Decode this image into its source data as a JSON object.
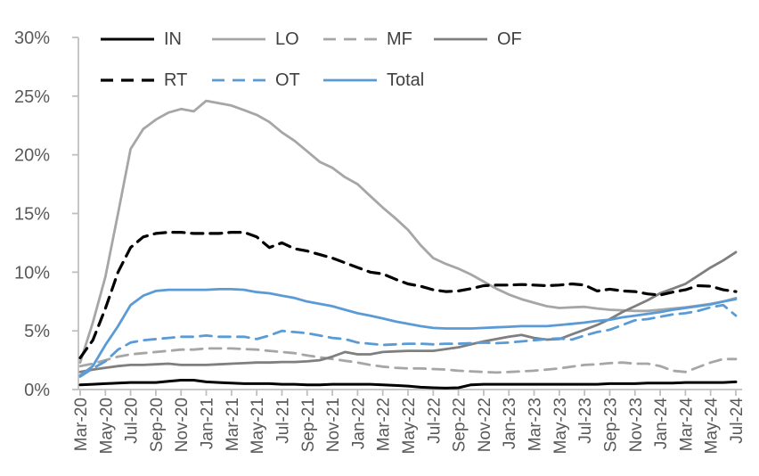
{
  "chart_data": {
    "type": "line",
    "title": "",
    "xlabel": "",
    "ylabel": "",
    "frequency": "monthly",
    "x_start": "Mar-20",
    "x_end": "Jul-24",
    "x_tick_labels": [
      "Mar-20",
      "May-20",
      "Jul-20",
      "Sep-20",
      "Nov-20",
      "Jan-21",
      "Mar-21",
      "May-21",
      "Jul-21",
      "Sep-21",
      "Nov-21",
      "Jan-22",
      "Mar-22",
      "May-22",
      "Jul-22",
      "Sep-22",
      "Nov-22",
      "Jan-23",
      "Mar-23",
      "May-23",
      "Jul-23",
      "Sep-23",
      "Nov-23",
      "Jan-24",
      "Mar-24",
      "May-24",
      "Jul-24"
    ],
    "y_tick_labels": [
      "30%",
      "25%",
      "20%",
      "15%",
      "10%",
      "5%",
      "0%"
    ],
    "y_tick_values": [
      30,
      25,
      20,
      15,
      10,
      5,
      0
    ],
    "ylim": [
      0,
      30
    ],
    "grid": "none",
    "legend_position": "top",
    "legend_rows": [
      [
        "IN",
        "LO",
        "MF",
        "OF"
      ],
      [
        "RT",
        "OT",
        "Total"
      ]
    ],
    "series": [
      {
        "name": "IN",
        "color": "#000000",
        "style": "solid",
        "width": 3,
        "values": [
          0.4,
          0.45,
          0.5,
          0.55,
          0.6,
          0.6,
          0.6,
          0.7,
          0.8,
          0.8,
          0.65,
          0.6,
          0.55,
          0.5,
          0.5,
          0.5,
          0.45,
          0.45,
          0.4,
          0.4,
          0.45,
          0.45,
          0.45,
          0.45,
          0.4,
          0.35,
          0.3,
          0.2,
          0.15,
          0.12,
          0.15,
          0.4,
          0.45,
          0.45,
          0.45,
          0.45,
          0.45,
          0.45,
          0.45,
          0.45,
          0.45,
          0.45,
          0.5,
          0.5,
          0.5,
          0.55,
          0.55,
          0.55,
          0.6,
          0.6,
          0.6,
          0.6,
          0.65
        ]
      },
      {
        "name": "LO",
        "color": "#A6A6A6",
        "style": "solid",
        "width": 2.8,
        "values": [
          2.3,
          5.7,
          9.6,
          15.0,
          20.5,
          22.2,
          23.0,
          23.6,
          23.9,
          23.7,
          24.6,
          24.4,
          24.2,
          23.8,
          23.4,
          22.8,
          21.9,
          21.2,
          20.3,
          19.4,
          18.9,
          18.1,
          17.5,
          16.5,
          15.5,
          14.6,
          13.6,
          12.3,
          11.2,
          10.7,
          10.3,
          9.8,
          9.2,
          8.6,
          8.1,
          7.7,
          7.4,
          7.1,
          6.95,
          7.0,
          7.05,
          6.9,
          6.8,
          6.75,
          6.7,
          6.7,
          6.8,
          6.9,
          7.0,
          7.15,
          7.3,
          7.5,
          7.8
        ]
      },
      {
        "name": "MF",
        "color": "#A6A6A6",
        "style": "dashed",
        "width": 2.8,
        "values": [
          2.0,
          2.2,
          2.5,
          2.8,
          3.0,
          3.1,
          3.2,
          3.3,
          3.4,
          3.4,
          3.5,
          3.5,
          3.5,
          3.45,
          3.4,
          3.3,
          3.2,
          3.1,
          2.9,
          2.75,
          2.6,
          2.45,
          2.3,
          2.1,
          1.95,
          1.85,
          1.8,
          1.8,
          1.75,
          1.7,
          1.6,
          1.55,
          1.5,
          1.45,
          1.5,
          1.55,
          1.6,
          1.7,
          1.8,
          1.95,
          2.1,
          2.15,
          2.25,
          2.3,
          2.2,
          2.2,
          2.0,
          1.6,
          1.5,
          1.9,
          2.3,
          2.6,
          2.6
        ]
      },
      {
        "name": "OF",
        "color": "#7F7F7F",
        "style": "solid",
        "width": 2.8,
        "values": [
          1.5,
          1.7,
          1.85,
          2.0,
          2.1,
          2.1,
          2.15,
          2.2,
          2.1,
          2.1,
          2.1,
          2.15,
          2.2,
          2.25,
          2.3,
          2.3,
          2.35,
          2.35,
          2.4,
          2.5,
          2.8,
          3.2,
          3.0,
          3.0,
          3.2,
          3.25,
          3.3,
          3.3,
          3.3,
          3.45,
          3.6,
          3.85,
          4.1,
          4.3,
          4.5,
          4.65,
          4.4,
          4.25,
          4.3,
          4.7,
          5.1,
          5.5,
          6.0,
          6.6,
          7.1,
          7.6,
          8.2,
          8.6,
          9.0,
          9.7,
          10.4,
          11.0,
          11.7
        ]
      },
      {
        "name": "RT",
        "color": "#000000",
        "style": "dashed",
        "width": 3.2,
        "values": [
          2.7,
          4.2,
          6.9,
          10.0,
          12.1,
          13.0,
          13.3,
          13.4,
          13.4,
          13.3,
          13.3,
          13.3,
          13.4,
          13.4,
          13.0,
          12.1,
          12.5,
          12.0,
          11.8,
          11.5,
          11.2,
          10.8,
          10.4,
          10.0,
          9.85,
          9.4,
          9.0,
          8.8,
          8.5,
          8.35,
          8.4,
          8.6,
          8.85,
          8.9,
          8.9,
          8.95,
          8.9,
          8.85,
          8.9,
          9.0,
          8.9,
          8.4,
          8.55,
          8.4,
          8.35,
          8.15,
          8.05,
          8.3,
          8.5,
          8.85,
          8.8,
          8.5,
          8.35
        ]
      },
      {
        "name": "OT",
        "color": "#5B9BD5",
        "style": "dashed",
        "width": 2.8,
        "values": [
          1.1,
          1.8,
          2.4,
          3.4,
          4.0,
          4.2,
          4.3,
          4.4,
          4.5,
          4.5,
          4.6,
          4.5,
          4.5,
          4.5,
          4.3,
          4.6,
          5.0,
          4.9,
          4.8,
          4.6,
          4.4,
          4.3,
          4.0,
          3.9,
          3.8,
          3.85,
          3.9,
          3.9,
          3.85,
          3.9,
          3.9,
          3.95,
          4.0,
          3.95,
          4.0,
          4.1,
          4.2,
          4.3,
          4.35,
          4.25,
          4.6,
          4.9,
          5.1,
          5.5,
          5.9,
          6.0,
          6.2,
          6.4,
          6.5,
          6.7,
          7.0,
          7.2,
          6.3
        ]
      },
      {
        "name": "Total",
        "color": "#5B9BD5",
        "style": "solid",
        "width": 2.8,
        "values": [
          1.2,
          2.0,
          3.8,
          5.4,
          7.2,
          8.0,
          8.4,
          8.5,
          8.5,
          8.5,
          8.5,
          8.55,
          8.55,
          8.5,
          8.3,
          8.2,
          8.0,
          7.8,
          7.5,
          7.3,
          7.1,
          6.8,
          6.5,
          6.3,
          6.05,
          5.8,
          5.6,
          5.4,
          5.25,
          5.2,
          5.2,
          5.2,
          5.25,
          5.3,
          5.35,
          5.4,
          5.4,
          5.4,
          5.5,
          5.6,
          5.7,
          5.85,
          5.95,
          6.15,
          6.3,
          6.45,
          6.6,
          6.8,
          6.95,
          7.1,
          7.25,
          7.5,
          7.7
        ]
      }
    ],
    "colors": {
      "axis_line": "#BFBFBF",
      "tick_mark": "#BFBFBF",
      "axis_label_text": "#595959",
      "legend_text": "#404040",
      "background": "#FFFFFF",
      "blue": "#5B9BD5",
      "light_gray": "#A6A6A6",
      "medium_gray": "#7F7F7F",
      "black": "#000000"
    }
  }
}
